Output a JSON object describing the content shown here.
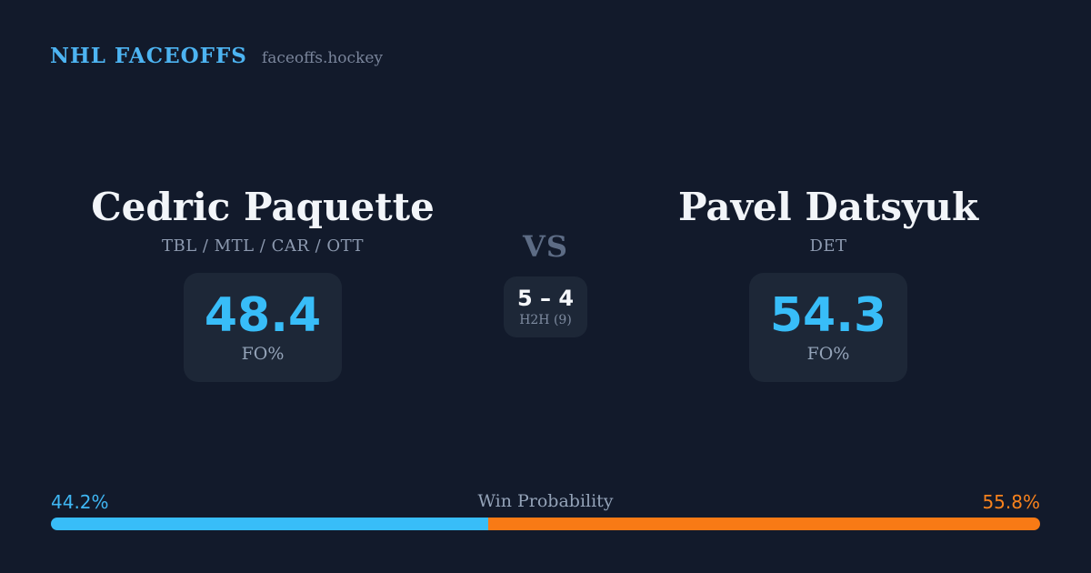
{
  "header": {
    "brand": "NHL FACEOFFS",
    "site": "faceoffs.hockey"
  },
  "matchup": {
    "player_left": {
      "name": "Cedric Paquette",
      "teams": "TBL / MTL / CAR / OTT",
      "stat_value": "48.4",
      "stat_label": "FO%"
    },
    "player_right": {
      "name": "Pavel Datsyuk",
      "teams": "DET",
      "stat_value": "54.3",
      "stat_label": "FO%"
    },
    "versus": {
      "label": "VS",
      "h2h_score": "5 – 4",
      "h2h_label": "H2H (9)"
    }
  },
  "win_probability": {
    "label": "Win Probability",
    "left_pct_label": "44.2%",
    "right_pct_label": "55.8%",
    "left_value": 44.2,
    "right_value": 55.8
  },
  "colors": {
    "background": "#121a2b",
    "panel": "#1d2737",
    "accent_blue": "#38bdf8",
    "accent_orange": "#f87a15",
    "header_blue": "#4db4f2",
    "text_primary": "#f2f5f9",
    "text_muted": "#94a3b8",
    "text_dim": "#5d6c85"
  }
}
